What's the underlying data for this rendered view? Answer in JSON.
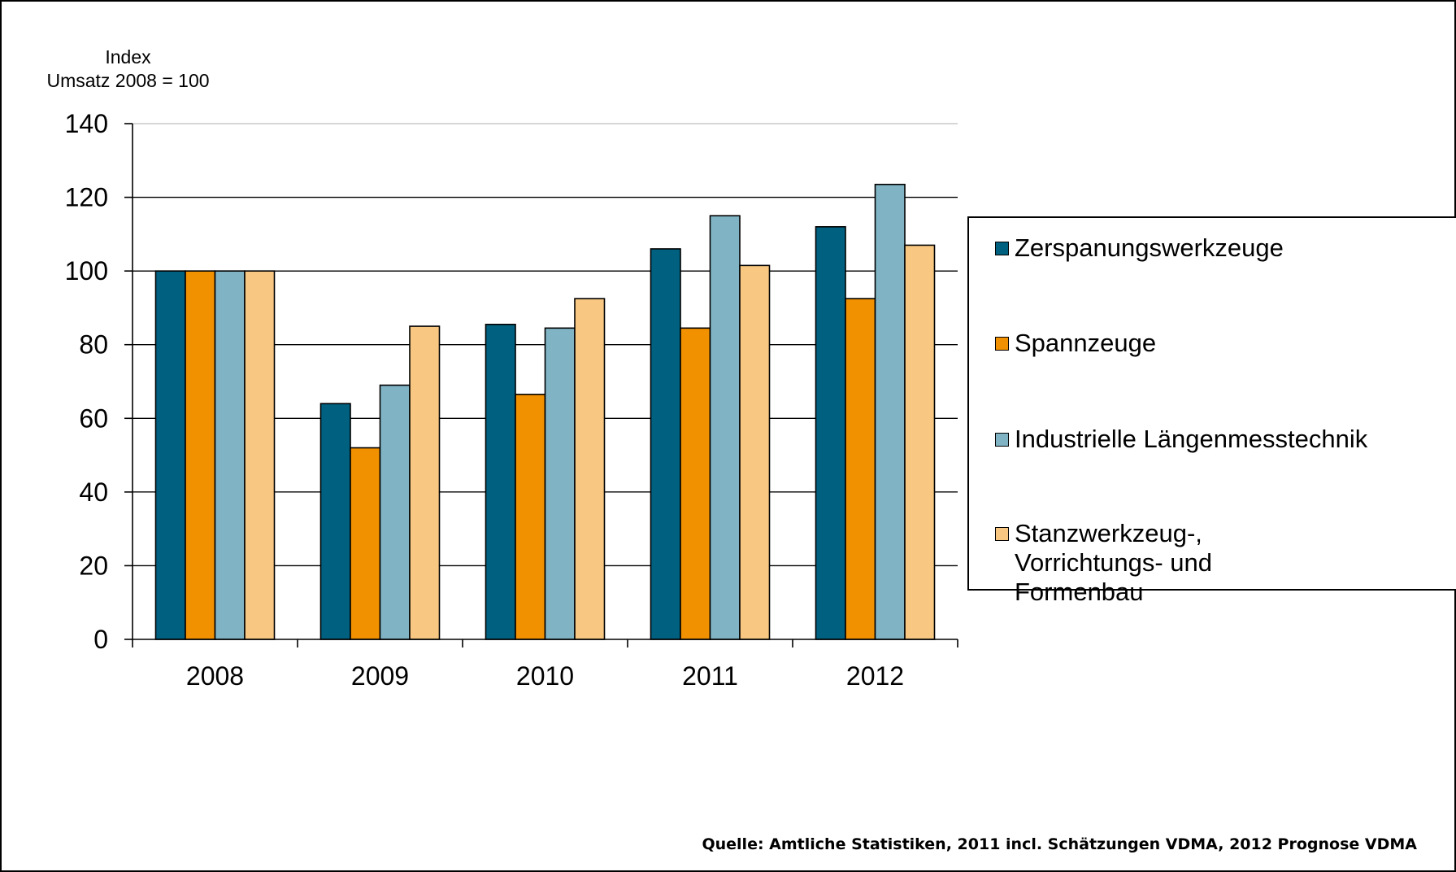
{
  "chart_data": {
    "type": "bar",
    "title": "",
    "ylabel_line1": "Index",
    "ylabel_line2": "Umsatz 2008 = 100",
    "xlabel": "",
    "ylim": [
      0,
      140
    ],
    "yticks": [
      0,
      20,
      40,
      60,
      80,
      100,
      120,
      140
    ],
    "grid": true,
    "legend_position": "right",
    "categories": [
      "2008",
      "2009",
      "2010",
      "2011",
      "2012"
    ],
    "series": [
      {
        "name": "Zerspanungswerkzeuge",
        "color": "#006080",
        "values": [
          100,
          64,
          85.5,
          106,
          112
        ]
      },
      {
        "name": "Spannzeuge",
        "color": "#F29100",
        "values": [
          100,
          52,
          66.5,
          84.5,
          92.5
        ]
      },
      {
        "name": "Industrielle Längenmesstechnik",
        "color": "#80B4C4",
        "values": [
          100,
          69,
          84.5,
          115,
          123.5
        ]
      },
      {
        "name": "Stanzwerkzeug-, Vorrichtungs- und Formenbau",
        "color": "#F8C882",
        "values": [
          100,
          85,
          92.5,
          101.5,
          107
        ]
      }
    ],
    "source": "Quelle: Amtliche Statistiken, 2011 incl. Schätzungen VDMA, 2012 Prognose VDMA"
  }
}
